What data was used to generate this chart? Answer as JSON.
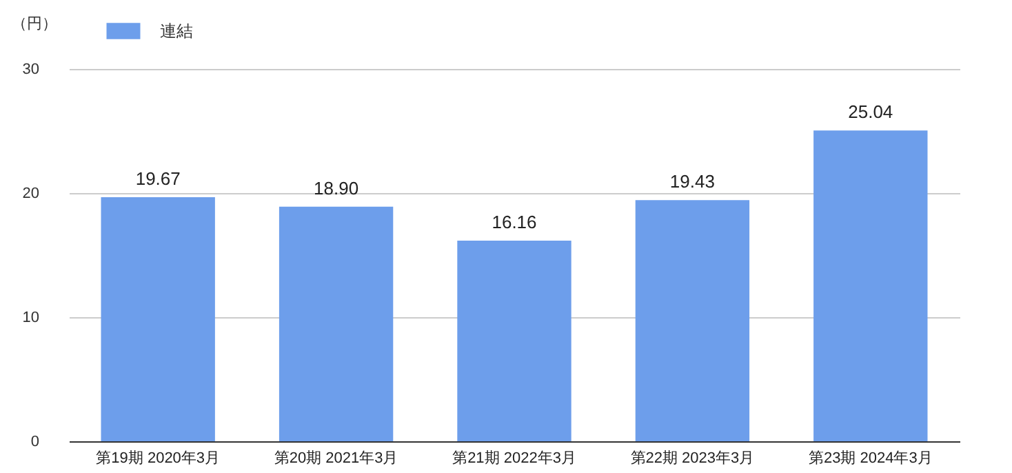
{
  "chart_data": {
    "type": "bar",
    "ylabel": "（円）",
    "categories": [
      "第19期 2020年3月",
      "第20期 2021年3月",
      "第21期 2022年3月",
      "第22期 2023年3月",
      "第23期 2024年3月"
    ],
    "series": [
      {
        "name": "連結",
        "color": "#6d9eeb",
        "values": [
          19.67,
          18.9,
          16.16,
          19.43,
          25.04
        ]
      }
    ],
    "value_labels": [
      "19.67",
      "18.90",
      "16.16",
      "19.43",
      "25.04"
    ],
    "ylim": [
      0,
      30
    ],
    "yticks": [
      0,
      10,
      20,
      30
    ],
    "grid": "y",
    "legend": "top left"
  }
}
